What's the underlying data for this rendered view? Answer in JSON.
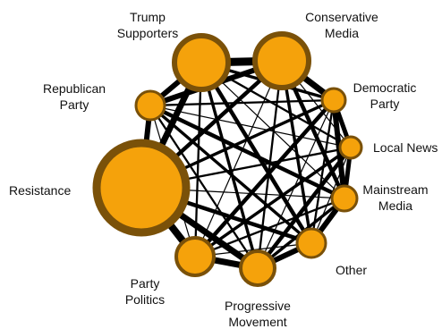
{
  "colors": {
    "node_fill": "#F5A20B",
    "node_stroke": "#7A5109",
    "edge": "#000000",
    "background": "#ffffff"
  },
  "nodes": [
    {
      "id": "trump",
      "label_lines": [
        "Trump",
        "Supporters"
      ]
    },
    {
      "id": "conservative",
      "label_lines": [
        "Conservative",
        "Media"
      ]
    },
    {
      "id": "democratic",
      "label_lines": [
        "Democratic",
        "Party"
      ]
    },
    {
      "id": "local",
      "label_lines": [
        "Local News"
      ]
    },
    {
      "id": "mainstream",
      "label_lines": [
        "Mainstream",
        "Media"
      ]
    },
    {
      "id": "other",
      "label_lines": [
        "Other"
      ]
    },
    {
      "id": "progressive",
      "label_lines": [
        "Progressive",
        "Movement"
      ]
    },
    {
      "id": "party",
      "label_lines": [
        "Party",
        "Politics"
      ]
    },
    {
      "id": "resistance",
      "label_lines": [
        "Resistance"
      ]
    },
    {
      "id": "republican",
      "label_lines": [
        "Republican",
        "Party"
      ]
    }
  ]
}
